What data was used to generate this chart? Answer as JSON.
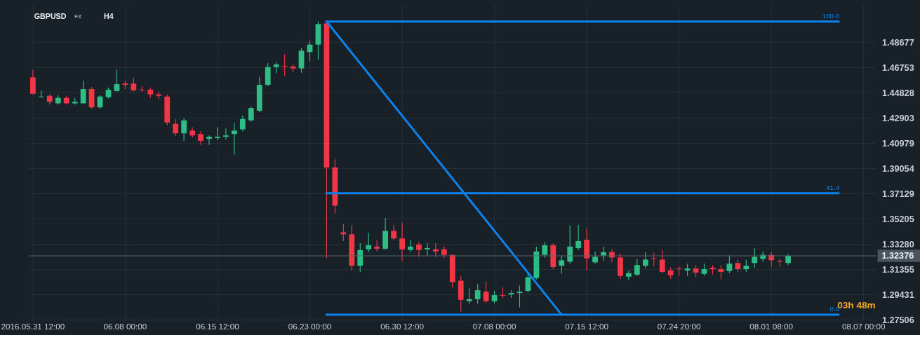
{
  "chart_data": {
    "type": "candlestick",
    "title": "GBPUSD",
    "categories": [
      "2016.05.31 12:00",
      null,
      null,
      null,
      null,
      null,
      null,
      null,
      null,
      null,
      null,
      "06.08 00:00",
      null,
      null,
      null,
      null,
      null,
      null,
      null,
      null,
      null,
      null,
      "06.15 12:00",
      null,
      null,
      null,
      null,
      null,
      null,
      null,
      null,
      null,
      null,
      "06.23 00:00",
      null,
      null,
      null,
      null,
      null,
      null,
      null,
      null,
      null,
      null,
      "06.30 12:00",
      null,
      null,
      null,
      null,
      null,
      null,
      null,
      null,
      null,
      null,
      "07.08 00:00",
      null,
      null,
      null,
      null,
      null,
      null,
      null,
      null,
      null,
      null,
      "07.15 12:00",
      null,
      null,
      null,
      null,
      null,
      null,
      null,
      null,
      null,
      null,
      "07.24 20:00",
      null,
      null,
      null,
      null,
      null,
      null,
      null,
      null,
      null,
      null,
      "08.01 08:00",
      null,
      null,
      null,
      null,
      null,
      null,
      null,
      null,
      null,
      null,
      "08.07 00:00",
      null
    ],
    "ohlc": [
      [
        1.4599,
        1.4656,
        1.4469,
        1.4474
      ],
      [
        1.4448,
        1.45,
        1.4443,
        1.4453
      ],
      [
        1.4458,
        1.4469,
        1.4391,
        1.4412
      ],
      [
        1.4401,
        1.4464,
        1.4391,
        1.4443
      ],
      [
        1.4443,
        1.4458,
        1.4391,
        1.4401
      ],
      [
        1.4401,
        1.4443,
        1.4391,
        1.4412
      ],
      [
        1.4401,
        1.4573,
        1.4396,
        1.451
      ],
      [
        1.451,
        1.4526,
        1.436,
        1.437
      ],
      [
        1.437,
        1.4464,
        1.436,
        1.4453
      ],
      [
        1.4448,
        1.4521,
        1.4438,
        1.4505
      ],
      [
        1.4495,
        1.4656,
        1.449,
        1.4547
      ],
      [
        1.4552,
        1.4573,
        1.451,
        1.4542
      ],
      [
        1.4552,
        1.4594,
        1.449,
        1.45
      ],
      [
        1.4505,
        1.4531,
        1.449,
        1.45
      ],
      [
        1.4505,
        1.4521,
        1.4443,
        1.4469
      ],
      [
        1.4469,
        1.449,
        1.4432,
        1.4458
      ],
      [
        1.4453,
        1.4469,
        1.4235,
        1.4255
      ],
      [
        1.4245,
        1.4281,
        1.4151,
        1.4172
      ],
      [
        1.4172,
        1.4287,
        1.4115,
        1.4271
      ],
      [
        1.4193,
        1.4219,
        1.4141,
        1.4156
      ],
      [
        1.4167,
        1.4188,
        1.4084,
        1.4115
      ],
      [
        1.413,
        1.4156,
        1.4084,
        1.4146
      ],
      [
        1.4136,
        1.4219,
        1.412,
        1.4146
      ],
      [
        1.4146,
        1.4209,
        1.4125,
        1.4156
      ],
      [
        1.4167,
        1.425,
        1.4006,
        1.4193
      ],
      [
        1.4203,
        1.4307,
        1.4188,
        1.4281
      ],
      [
        1.4271,
        1.4375,
        1.4261,
        1.4365
      ],
      [
        1.4344,
        1.4604,
        1.4333,
        1.4542
      ],
      [
        1.4542,
        1.4708,
        1.4531,
        1.4677
      ],
      [
        1.4677,
        1.4713,
        1.463,
        1.4698
      ],
      [
        1.4687,
        1.4776,
        1.4609,
        1.4682
      ],
      [
        1.4682,
        1.4698,
        1.4641,
        1.4667
      ],
      [
        1.4667,
        1.4823,
        1.4635,
        1.4802
      ],
      [
        1.4792,
        1.488,
        1.4724,
        1.4849
      ],
      [
        1.4849,
        1.5026,
        1.4734,
        1.5005
      ],
      [
        1.501,
        1.5026,
        1.3219,
        1.3912
      ],
      [
        1.3912,
        1.3974,
        1.3558,
        1.362
      ],
      [
        1.3417,
        1.348,
        1.335,
        1.3402
      ],
      [
        1.3402,
        1.3469,
        1.3126,
        1.3162
      ],
      [
        1.3162,
        1.3334,
        1.3115,
        1.3282
      ],
      [
        1.3287,
        1.3412,
        1.3266,
        1.3318
      ],
      [
        1.3308,
        1.3355,
        1.3271,
        1.3292
      ],
      [
        1.3292,
        1.3527,
        1.3282,
        1.3428
      ],
      [
        1.3428,
        1.3475,
        1.3355,
        1.337
      ],
      [
        1.337,
        1.349,
        1.3199,
        1.3287
      ],
      [
        1.3282,
        1.336,
        1.3266,
        1.3308
      ],
      [
        1.3323,
        1.3344,
        1.323,
        1.3282
      ],
      [
        1.3287,
        1.3334,
        1.324,
        1.3297
      ],
      [
        1.3287,
        1.3334,
        1.323,
        1.3271
      ],
      [
        1.3287,
        1.3308,
        1.3219,
        1.3245
      ],
      [
        1.3245,
        1.3245,
        1.2996,
        1.3037
      ],
      [
        1.3048,
        1.3084,
        1.2813,
        1.2902
      ],
      [
        1.2891,
        1.299,
        1.2871,
        1.2907
      ],
      [
        1.2907,
        1.3022,
        1.2871,
        1.2975
      ],
      [
        1.2964,
        1.3042,
        1.2881,
        1.2891
      ],
      [
        1.2891,
        1.297,
        1.2876,
        1.2938
      ],
      [
        1.2938,
        1.2996,
        1.2917,
        1.2933
      ],
      [
        1.2943,
        1.2975,
        1.2917,
        1.2954
      ],
      [
        1.2954,
        1.3011,
        1.2845,
        1.2964
      ],
      [
        1.297,
        1.3105,
        1.2959,
        1.3074
      ],
      [
        1.3068,
        1.3308,
        1.3058,
        1.3271
      ],
      [
        1.3245,
        1.3344,
        1.3225,
        1.3318
      ],
      [
        1.3318,
        1.3334,
        1.3136,
        1.3152
      ],
      [
        1.3162,
        1.324,
        1.31,
        1.3204
      ],
      [
        1.3193,
        1.3469,
        1.3178,
        1.3308
      ],
      [
        1.3297,
        1.3475,
        1.3282,
        1.335
      ],
      [
        1.336,
        1.3443,
        1.3126,
        1.3219
      ],
      [
        1.3188,
        1.3271,
        1.3178,
        1.323
      ],
      [
        1.324,
        1.3308,
        1.3199,
        1.3266
      ],
      [
        1.3266,
        1.3287,
        1.3188,
        1.3225
      ],
      [
        1.3225,
        1.3256,
        1.3063,
        1.3084
      ],
      [
        1.3079,
        1.3126,
        1.3053,
        1.3105
      ],
      [
        1.3094,
        1.3214,
        1.3084,
        1.3167
      ],
      [
        1.3162,
        1.3266,
        1.3141,
        1.3209
      ],
      [
        1.3219,
        1.3261,
        1.3157,
        1.3214
      ],
      [
        1.3209,
        1.3282,
        1.3105,
        1.3115
      ],
      [
        1.3126,
        1.3147,
        1.3063,
        1.3089
      ],
      [
        1.3141,
        1.3157,
        1.3084,
        1.3136
      ],
      [
        1.3126,
        1.3178,
        1.3084,
        1.3141
      ],
      [
        1.3141,
        1.3167,
        1.3074,
        1.311
      ],
      [
        1.31,
        1.3178,
        1.3084,
        1.3136
      ],
      [
        1.3147,
        1.3167,
        1.3094,
        1.3136
      ],
      [
        1.3136,
        1.3167,
        1.3058,
        1.3115
      ],
      [
        1.3121,
        1.324,
        1.3105,
        1.3178
      ],
      [
        1.3183,
        1.3209,
        1.3115,
        1.3136
      ],
      [
        1.3136,
        1.3209,
        1.3115,
        1.3162
      ],
      [
        1.3183,
        1.3297,
        1.3147,
        1.323
      ],
      [
        1.3214,
        1.3271,
        1.3193,
        1.3245
      ],
      [
        1.3245,
        1.3266,
        1.3152,
        1.3204
      ],
      [
        1.3199,
        1.3214,
        1.3157,
        1.3193
      ],
      [
        1.3183,
        1.3251,
        1.3167,
        1.3238
      ],
      null,
      null,
      null,
      null,
      null,
      null,
      null,
      null,
      null,
      null
    ],
    "colors": [
      "#f23645",
      "#2dbd85",
      "#f23645",
      "#2dbd85",
      "#f23645",
      "#2dbd85",
      "#2dbd85",
      "#f23645",
      "#2dbd85",
      "#2dbd85",
      "#2dbd85",
      "#f23645",
      "#f23645",
      "#f23645",
      "#f23645",
      "#f23645",
      "#f23645",
      "#f23645",
      "#2dbd85",
      "#f23645",
      "#f23645",
      "#2dbd85",
      "#2dbd85",
      "#2dbd85",
      "#2dbd85",
      "#2dbd85",
      "#2dbd85",
      "#2dbd85",
      "#2dbd85",
      "#2dbd85",
      "#f23645",
      "#f23645",
      "#2dbd85",
      "#2dbd85",
      "#2dbd85",
      "#f23645",
      "#f23645",
      "#f23645",
      "#f23645",
      "#2dbd85",
      "#2dbd85",
      "#f23645",
      "#2dbd85",
      "#f23645",
      "#f23645",
      "#2dbd85",
      "#f23645",
      "#2dbd85",
      "#f23645",
      "#f23645",
      "#f23645",
      "#f23645",
      "#2dbd85",
      "#2dbd85",
      "#f23645",
      "#2dbd85",
      "#f23645",
      "#2dbd85",
      "#2dbd85",
      "#2dbd85",
      "#2dbd85",
      "#2dbd85",
      "#f23645",
      "#2dbd85",
      "#2dbd85",
      "#2dbd85",
      "#f23645",
      "#2dbd85",
      "#2dbd85",
      "#f23645",
      "#f23645",
      "#2dbd85",
      "#2dbd85",
      "#2dbd85",
      "#f23645",
      "#f23645",
      "#f23645",
      "#f23645",
      "#2dbd85",
      "#f23645",
      "#2dbd85",
      "#f23645",
      "#f23645",
      "#2dbd85",
      "#f23645",
      "#2dbd85",
      "#2dbd85",
      "#2dbd85",
      "#f23645",
      "#f23645",
      "#2dbd85",
      null,
      null,
      null,
      null,
      null,
      null,
      null,
      null,
      null,
      null
    ],
    "series": [
      {
        "type": "line",
        "color": "#0a84f0",
        "values": [
          null,
          null,
          null,
          null,
          null,
          null,
          null,
          null,
          null,
          null,
          null,
          null,
          null,
          null,
          null,
          null,
          null,
          null,
          null,
          null,
          null,
          null,
          null,
          null,
          null,
          null,
          null,
          null,
          null,
          null,
          null,
          null,
          null,
          null,
          null,
          1.5025,
          1.5025,
          1.5025,
          1.5025,
          1.5025,
          1.5025,
          1.5025,
          1.5025,
          1.5025,
          1.5025,
          1.5025,
          1.5025,
          1.5025,
          1.5025,
          1.5025,
          1.5025,
          1.5025,
          1.5025,
          1.5025,
          1.5025,
          1.5025,
          1.5025,
          1.5025,
          1.5025,
          1.5025,
          1.5025,
          1.5025,
          1.5025,
          1.5025,
          1.5025,
          1.5025,
          1.5025,
          1.5025,
          1.5025,
          1.5025,
          1.5025,
          1.5025,
          1.5025,
          1.5025,
          1.5025,
          1.5025,
          1.5025,
          1.5025,
          1.5025,
          1.5025,
          1.5025,
          1.5025,
          1.5025,
          1.5025,
          1.5025,
          1.5025,
          1.5025,
          1.5025,
          1.5025,
          1.5025,
          1.5025,
          1.5025,
          1.5025,
          1.5025,
          1.5025,
          1.5025,
          1.5025,
          null,
          null,
          null,
          null
        ]
      },
      {
        "type": "line",
        "color": "#0a84f0",
        "values": [
          null,
          null,
          null,
          null,
          null,
          null,
          null,
          null,
          null,
          null,
          null,
          null,
          null,
          null,
          null,
          null,
          null,
          null,
          null,
          null,
          null,
          null,
          null,
          null,
          null,
          null,
          null,
          null,
          null,
          null,
          null,
          null,
          null,
          null,
          null,
          1.3715,
          1.3715,
          1.3715,
          1.3715,
          1.3715,
          1.3715,
          1.3715,
          1.3715,
          1.3715,
          1.3715,
          1.3715,
          1.3715,
          1.3715,
          1.3715,
          1.3715,
          1.3715,
          1.3715,
          1.3715,
          1.3715,
          1.3715,
          1.3715,
          1.3715,
          1.3715,
          1.3715,
          1.3715,
          1.3715,
          1.3715,
          1.3715,
          1.3715,
          1.3715,
          1.3715,
          1.3715,
          1.3715,
          1.3715,
          1.3715,
          1.3715,
          1.3715,
          1.3715,
          1.3715,
          1.3715,
          1.3715,
          1.3715,
          1.3715,
          1.3715,
          1.3715,
          1.3715,
          1.3715,
          1.3715,
          1.3715,
          1.3715,
          1.3715,
          1.3715,
          1.3715,
          1.3715,
          1.3715,
          1.3715,
          1.3715,
          1.3715,
          1.3715,
          1.3715,
          1.3715,
          1.3715,
          null,
          null,
          null,
          null
        ]
      },
      {
        "type": "line",
        "color": "#0a84f0",
        "values": [
          null,
          null,
          null,
          null,
          null,
          null,
          null,
          null,
          null,
          null,
          null,
          null,
          null,
          null,
          null,
          null,
          null,
          null,
          null,
          null,
          null,
          null,
          null,
          null,
          null,
          null,
          null,
          null,
          null,
          null,
          null,
          null,
          null,
          null,
          null,
          1.2789,
          1.2789,
          1.2789,
          1.2789,
          1.2789,
          1.2789,
          1.2789,
          1.2789,
          1.2789,
          1.2789,
          1.2789,
          1.2789,
          1.2789,
          1.2789,
          1.2789,
          1.2789,
          1.2789,
          1.2789,
          1.2789,
          1.2789,
          1.2789,
          1.2789,
          1.2789,
          1.2789,
          1.2789,
          1.2789,
          1.2789,
          1.2789,
          1.2789,
          1.2789,
          1.2789,
          1.2789,
          1.2789,
          1.2789,
          1.2789,
          1.2789,
          1.2789,
          1.2789,
          1.2789,
          1.2789,
          1.2789,
          1.2789,
          1.2789,
          1.2789,
          1.2789,
          1.2789,
          1.2789,
          1.2789,
          1.2789,
          1.2789,
          1.2789,
          1.2789,
          1.2789,
          1.2789,
          1.2789,
          1.2789,
          1.2789,
          1.2789,
          1.2789,
          1.2789,
          1.2789,
          1.2789,
          null,
          null,
          null,
          null
        ]
      },
      {
        "type": "line",
        "color": "#0a84f0",
        "values": [
          null,
          null,
          null,
          null,
          null,
          null,
          null,
          null,
          null,
          null,
          null,
          null,
          null,
          null,
          null,
          null,
          null,
          null,
          null,
          null,
          null,
          null,
          null,
          null,
          null,
          null,
          null,
          null,
          null,
          null,
          null,
          null,
          null,
          null,
          null,
          1.5025,
          null,
          null,
          null,
          null,
          null,
          null,
          null,
          null,
          null,
          null,
          null,
          null,
          null,
          null,
          null,
          null,
          null,
          null,
          null,
          null,
          null,
          null,
          null,
          null,
          null,
          null,
          null,
          1.2789,
          null,
          null,
          null,
          null,
          null,
          null,
          null,
          null,
          null,
          null,
          null,
          null,
          null,
          null,
          null,
          null,
          null,
          null,
          null,
          null,
          null,
          null,
          null,
          null,
          null,
          null,
          null,
          null,
          null,
          null,
          null,
          null,
          null,
          null,
          null,
          null,
          null
        ]
      }
    ],
    "ylim": [
      1.2745,
      1.5156
    ],
    "yticks": [
      1.48677,
      1.46753,
      1.44828,
      1.42903,
      1.40979,
      1.39054,
      1.37129,
      1.35205,
      {
        "value": 1.3328,
        "label": "1.33280"
      },
      1.31355,
      1.29431,
      1.27506
    ],
    "ref_lines": [
      {
        "axis": "y",
        "value": 1.32376,
        "label": "1.32376",
        "color": "#5d6670"
      }
    ],
    "annotations": [
      "FX",
      "H4",
      "03h 48m",
      {
        "text": "100.0",
        "y": 1.5025
      },
      {
        "text": "41.4",
        "y": 1.3715
      },
      {
        "text": "0.0",
        "y": 1.2789
      }
    ],
    "grid": true
  }
}
